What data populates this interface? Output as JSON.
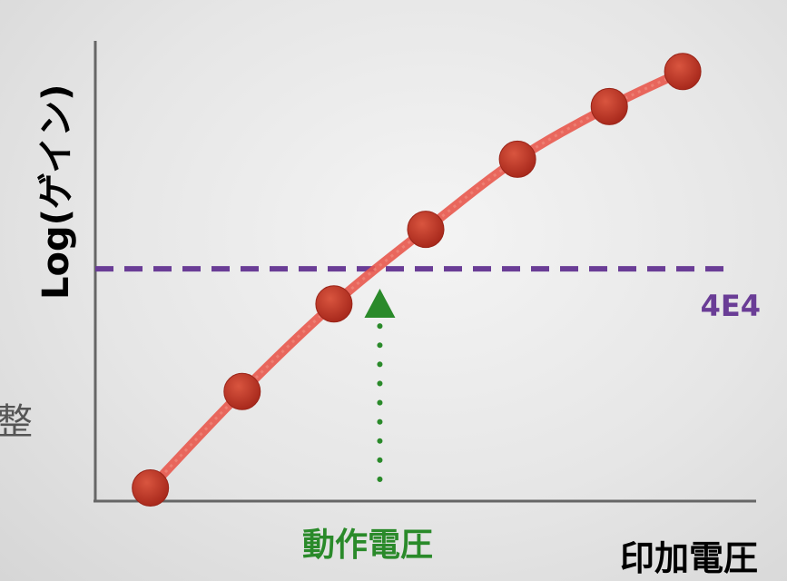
{
  "edge_text": "整",
  "chart_data": {
    "type": "line",
    "xlabel": "印加電圧",
    "ylabel": "Log(ゲイン)",
    "points": [
      {
        "x": 0.0,
        "y": 0.0
      },
      {
        "x": 1.0,
        "y": 1.1
      },
      {
        "x": 2.0,
        "y": 2.1
      },
      {
        "x": 3.0,
        "y": 2.95
      },
      {
        "x": 4.0,
        "y": 3.75
      },
      {
        "x": 5.0,
        "y": 4.35
      },
      {
        "x": 5.8,
        "y": 4.75
      }
    ],
    "xlim": [
      -0.6,
      6.6
    ],
    "ylim": [
      -0.15,
      5.1
    ],
    "reference_line": {
      "y": 2.5,
      "label": "4E4",
      "color": "#6a3d96"
    },
    "operating_point": {
      "x": 2.5,
      "label": "動作電圧",
      "color": "#2a8a2a"
    },
    "line_color": "#e8584c",
    "marker_color": "#c0392b"
  }
}
